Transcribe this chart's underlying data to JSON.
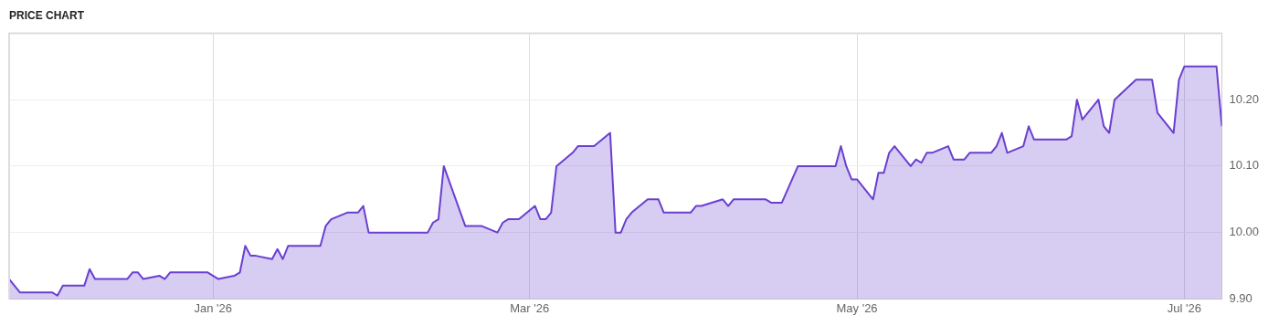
{
  "chart_data": {
    "type": "area",
    "title": "PRICE CHART",
    "x": [
      "2025-11-24",
      "2025-11-26",
      "2025-12-02",
      "2025-12-03",
      "2025-12-04",
      "2025-12-08",
      "2025-12-09",
      "2025-12-10",
      "2025-12-16",
      "2025-12-17",
      "2025-12-18",
      "2025-12-19",
      "2025-12-22",
      "2025-12-23",
      "2025-12-24",
      "2025-12-31",
      "2026-01-02",
      "2026-01-05",
      "2026-01-06",
      "2026-01-07",
      "2026-01-08",
      "2026-01-09",
      "2026-01-12",
      "2026-01-13",
      "2026-01-14",
      "2026-01-15",
      "2026-01-21",
      "2026-01-22",
      "2026-01-23",
      "2026-01-26",
      "2026-01-28",
      "2026-01-29",
      "2026-01-30",
      "2026-02-10",
      "2026-02-11",
      "2026-02-12",
      "2026-02-13",
      "2026-02-17",
      "2026-02-20",
      "2026-02-23",
      "2026-02-24",
      "2026-02-25",
      "2026-02-27",
      "2026-03-02",
      "2026-03-03",
      "2026-03-04",
      "2026-03-05",
      "2026-03-06",
      "2026-03-09",
      "2026-03-10",
      "2026-03-13",
      "2026-03-16",
      "2026-03-17",
      "2026-03-18",
      "2026-03-19",
      "2026-03-20",
      "2026-03-23",
      "2026-03-25",
      "2026-03-26",
      "2026-03-31",
      "2026-04-01",
      "2026-04-02",
      "2026-04-06",
      "2026-04-07",
      "2026-04-08",
      "2026-04-14",
      "2026-04-15",
      "2026-04-17",
      "2026-04-20",
      "2026-04-27",
      "2026-04-28",
      "2026-04-29",
      "2026-04-30",
      "2026-05-01",
      "2026-05-04",
      "2026-05-05",
      "2026-05-06",
      "2026-05-07",
      "2026-05-08",
      "2026-05-11",
      "2026-05-12",
      "2026-05-13",
      "2026-05-14",
      "2026-05-15",
      "2026-05-18",
      "2026-05-19",
      "2026-05-21",
      "2026-05-22",
      "2026-05-26",
      "2026-05-27",
      "2026-05-28",
      "2026-05-29",
      "2026-06-01",
      "2026-06-02",
      "2026-06-03",
      "2026-06-09",
      "2026-06-10",
      "2026-06-11",
      "2026-06-12",
      "2026-06-15",
      "2026-06-16",
      "2026-06-17",
      "2026-06-18",
      "2026-06-22",
      "2026-06-25",
      "2026-06-26",
      "2026-06-29",
      "2026-06-30",
      "2026-07-01",
      "2026-07-07",
      "2026-07-08"
    ],
    "series": [
      {
        "color": "#6a3fd0",
        "values": [
          9.93,
          9.91,
          9.91,
          9.905,
          9.92,
          9.92,
          9.945,
          9.93,
          9.93,
          9.94,
          9.94,
          9.93,
          9.935,
          9.93,
          9.94,
          9.94,
          9.93,
          9.935,
          9.94,
          9.98,
          9.965,
          9.965,
          9.96,
          9.975,
          9.96,
          9.98,
          9.98,
          10.01,
          10.02,
          10.03,
          10.03,
          10.04,
          10.0,
          10.0,
          10.015,
          10.02,
          10.1,
          10.01,
          10.01,
          10.0,
          10.015,
          10.02,
          10.02,
          10.04,
          10.02,
          10.02,
          10.03,
          10.1,
          10.12,
          10.13,
          10.13,
          10.15,
          10.0,
          10.0,
          10.02,
          10.03,
          10.05,
          10.05,
          10.03,
          10.03,
          10.04,
          10.04,
          10.05,
          10.04,
          10.05,
          10.05,
          10.045,
          10.045,
          10.1,
          10.1,
          10.13,
          10.1,
          10.08,
          10.08,
          10.05,
          10.09,
          10.09,
          10.12,
          10.13,
          10.1,
          10.11,
          10.105,
          10.12,
          10.12,
          10.13,
          10.11,
          10.11,
          10.12,
          10.12,
          10.13,
          10.15,
          10.12,
          10.13,
          10.16,
          10.14,
          10.14,
          10.145,
          10.2,
          10.17,
          10.2,
          10.16,
          10.15,
          10.2,
          10.23,
          10.23,
          10.18,
          10.15,
          10.23,
          10.25,
          10.25,
          10.16
        ]
      }
    ],
    "xlim": [
      "2025-11-24",
      "2026-07-08"
    ],
    "xticks": [
      {
        "value": "2026-01-01",
        "label": "Jan '26"
      },
      {
        "value": "2026-03-01",
        "label": "Mar '26"
      },
      {
        "value": "2026-05-01",
        "label": "May '26"
      },
      {
        "value": "2026-07-01",
        "label": "Jul '26"
      }
    ],
    "ylim": [
      9.9,
      10.3
    ],
    "yticks": [
      {
        "value": 9.9,
        "label": "9.90"
      },
      {
        "value": 10.0,
        "label": "10.00"
      },
      {
        "value": 10.1,
        "label": "10.10"
      },
      {
        "value": 10.2,
        "label": "10.20"
      }
    ],
    "grid": true,
    "legend": false
  }
}
